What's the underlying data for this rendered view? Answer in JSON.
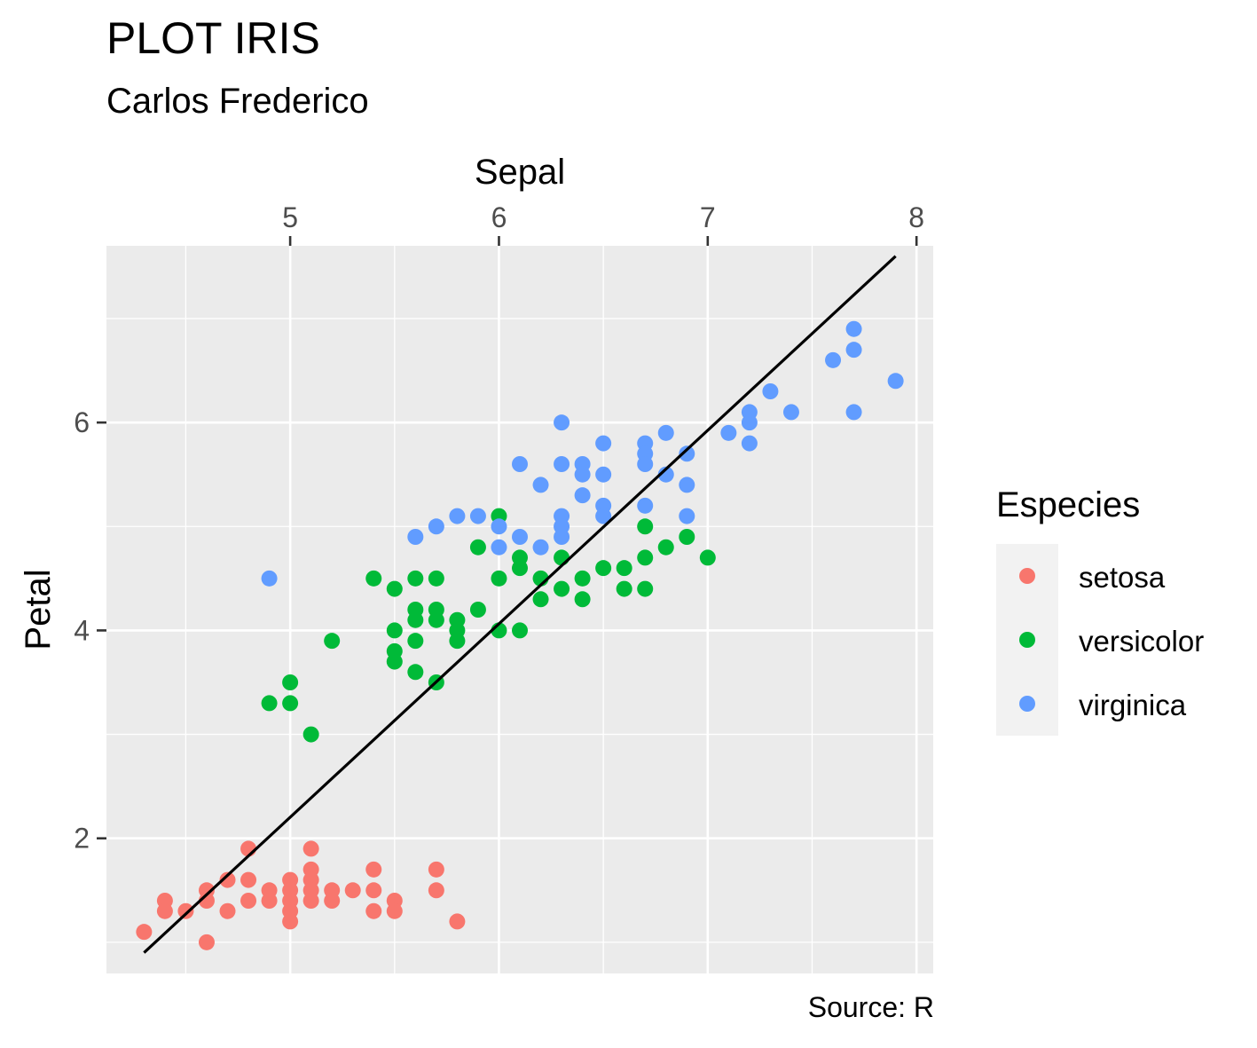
{
  "chart_data": {
    "type": "scatter",
    "title": "PLOT IRIS",
    "subtitle": "Carlos Frederico",
    "xlabel": "Sepal",
    "ylabel": "Petal",
    "caption": "Source: R",
    "x_axis_position": "top",
    "xlim": [
      4.12,
      8.08
    ],
    "ylim": [
      0.7,
      7.7
    ],
    "x_ticks": [
      5,
      6,
      7,
      8
    ],
    "y_ticks": [
      2,
      4,
      6
    ],
    "grid": true,
    "legend": {
      "title": "Especies",
      "placement": "right"
    },
    "trend_line": {
      "x": [
        4.3,
        7.9
      ],
      "y": [
        0.9,
        7.6
      ],
      "color": "#000000"
    },
    "series": [
      {
        "name": "setosa",
        "color": "#F8766D",
        "points": [
          [
            4.3,
            1.1
          ],
          [
            4.4,
            1.4
          ],
          [
            4.4,
            1.3
          ],
          [
            4.5,
            1.3
          ],
          [
            4.6,
            1.5
          ],
          [
            4.6,
            1.4
          ],
          [
            4.6,
            1.0
          ],
          [
            4.7,
            1.6
          ],
          [
            4.7,
            1.3
          ],
          [
            4.8,
            1.9
          ],
          [
            4.8,
            1.6
          ],
          [
            4.8,
            1.4
          ],
          [
            4.9,
            1.5
          ],
          [
            4.9,
            1.4
          ],
          [
            5.0,
            1.6
          ],
          [
            5.0,
            1.5
          ],
          [
            5.0,
            1.4
          ],
          [
            5.0,
            1.3
          ],
          [
            5.0,
            1.2
          ],
          [
            5.1,
            1.9
          ],
          [
            5.1,
            1.7
          ],
          [
            5.1,
            1.6
          ],
          [
            5.1,
            1.5
          ],
          [
            5.1,
            1.4
          ],
          [
            5.2,
            1.5
          ],
          [
            5.2,
            1.4
          ],
          [
            5.3,
            1.5
          ],
          [
            5.4,
            1.7
          ],
          [
            5.4,
            1.5
          ],
          [
            5.4,
            1.3
          ],
          [
            5.5,
            1.4
          ],
          [
            5.5,
            1.3
          ],
          [
            5.7,
            1.7
          ],
          [
            5.7,
            1.5
          ],
          [
            5.8,
            1.2
          ]
        ]
      },
      {
        "name": "versicolor",
        "color": "#00BA38",
        "points": [
          [
            4.9,
            3.3
          ],
          [
            5.0,
            3.5
          ],
          [
            5.0,
            3.3
          ],
          [
            5.1,
            3.0
          ],
          [
            5.2,
            3.9
          ],
          [
            5.4,
            4.5
          ],
          [
            5.5,
            4.4
          ],
          [
            5.5,
            4.0
          ],
          [
            5.5,
            3.8
          ],
          [
            5.5,
            3.7
          ],
          [
            5.6,
            4.5
          ],
          [
            5.6,
            4.2
          ],
          [
            5.6,
            4.1
          ],
          [
            5.6,
            3.9
          ],
          [
            5.6,
            3.6
          ],
          [
            5.7,
            4.5
          ],
          [
            5.7,
            4.2
          ],
          [
            5.7,
            4.1
          ],
          [
            5.7,
            3.5
          ],
          [
            5.8,
            4.1
          ],
          [
            5.8,
            4.0
          ],
          [
            5.8,
            3.9
          ],
          [
            5.9,
            4.8
          ],
          [
            5.9,
            4.2
          ],
          [
            6.0,
            5.1
          ],
          [
            6.0,
            4.5
          ],
          [
            6.0,
            4.0
          ],
          [
            6.1,
            4.7
          ],
          [
            6.1,
            4.6
          ],
          [
            6.1,
            4.0
          ],
          [
            6.2,
            4.5
          ],
          [
            6.2,
            4.3
          ],
          [
            6.3,
            4.7
          ],
          [
            6.3,
            4.4
          ],
          [
            6.4,
            4.5
          ],
          [
            6.4,
            4.3
          ],
          [
            6.5,
            4.6
          ],
          [
            6.6,
            4.6
          ],
          [
            6.6,
            4.4
          ],
          [
            6.7,
            5.0
          ],
          [
            6.7,
            4.7
          ],
          [
            6.7,
            4.4
          ],
          [
            6.8,
            4.8
          ],
          [
            6.9,
            4.9
          ],
          [
            7.0,
            4.7
          ]
        ]
      },
      {
        "name": "virginica",
        "color": "#619CFF",
        "points": [
          [
            4.9,
            4.5
          ],
          [
            5.6,
            4.9
          ],
          [
            5.7,
            5.0
          ],
          [
            5.8,
            5.1
          ],
          [
            5.9,
            5.1
          ],
          [
            6.0,
            5.0
          ],
          [
            6.0,
            4.8
          ],
          [
            6.1,
            5.6
          ],
          [
            6.1,
            4.9
          ],
          [
            6.2,
            5.4
          ],
          [
            6.2,
            4.8
          ],
          [
            6.3,
            6.0
          ],
          [
            6.3,
            5.6
          ],
          [
            6.3,
            5.1
          ],
          [
            6.3,
            5.0
          ],
          [
            6.3,
            4.9
          ],
          [
            6.4,
            5.6
          ],
          [
            6.4,
            5.5
          ],
          [
            6.4,
            5.3
          ],
          [
            6.5,
            5.8
          ],
          [
            6.5,
            5.5
          ],
          [
            6.5,
            5.2
          ],
          [
            6.5,
            5.1
          ],
          [
            6.7,
            5.8
          ],
          [
            6.7,
            5.7
          ],
          [
            6.7,
            5.6
          ],
          [
            6.7,
            5.2
          ],
          [
            6.8,
            5.9
          ],
          [
            6.8,
            5.5
          ],
          [
            6.9,
            5.7
          ],
          [
            6.9,
            5.4
          ],
          [
            6.9,
            5.1
          ],
          [
            7.1,
            5.9
          ],
          [
            7.2,
            6.1
          ],
          [
            7.2,
            6.0
          ],
          [
            7.2,
            5.8
          ],
          [
            7.3,
            6.3
          ],
          [
            7.4,
            6.1
          ],
          [
            7.6,
            6.6
          ],
          [
            7.7,
            6.9
          ],
          [
            7.7,
            6.7
          ],
          [
            7.7,
            6.1
          ],
          [
            7.9,
            6.4
          ]
        ]
      }
    ]
  }
}
